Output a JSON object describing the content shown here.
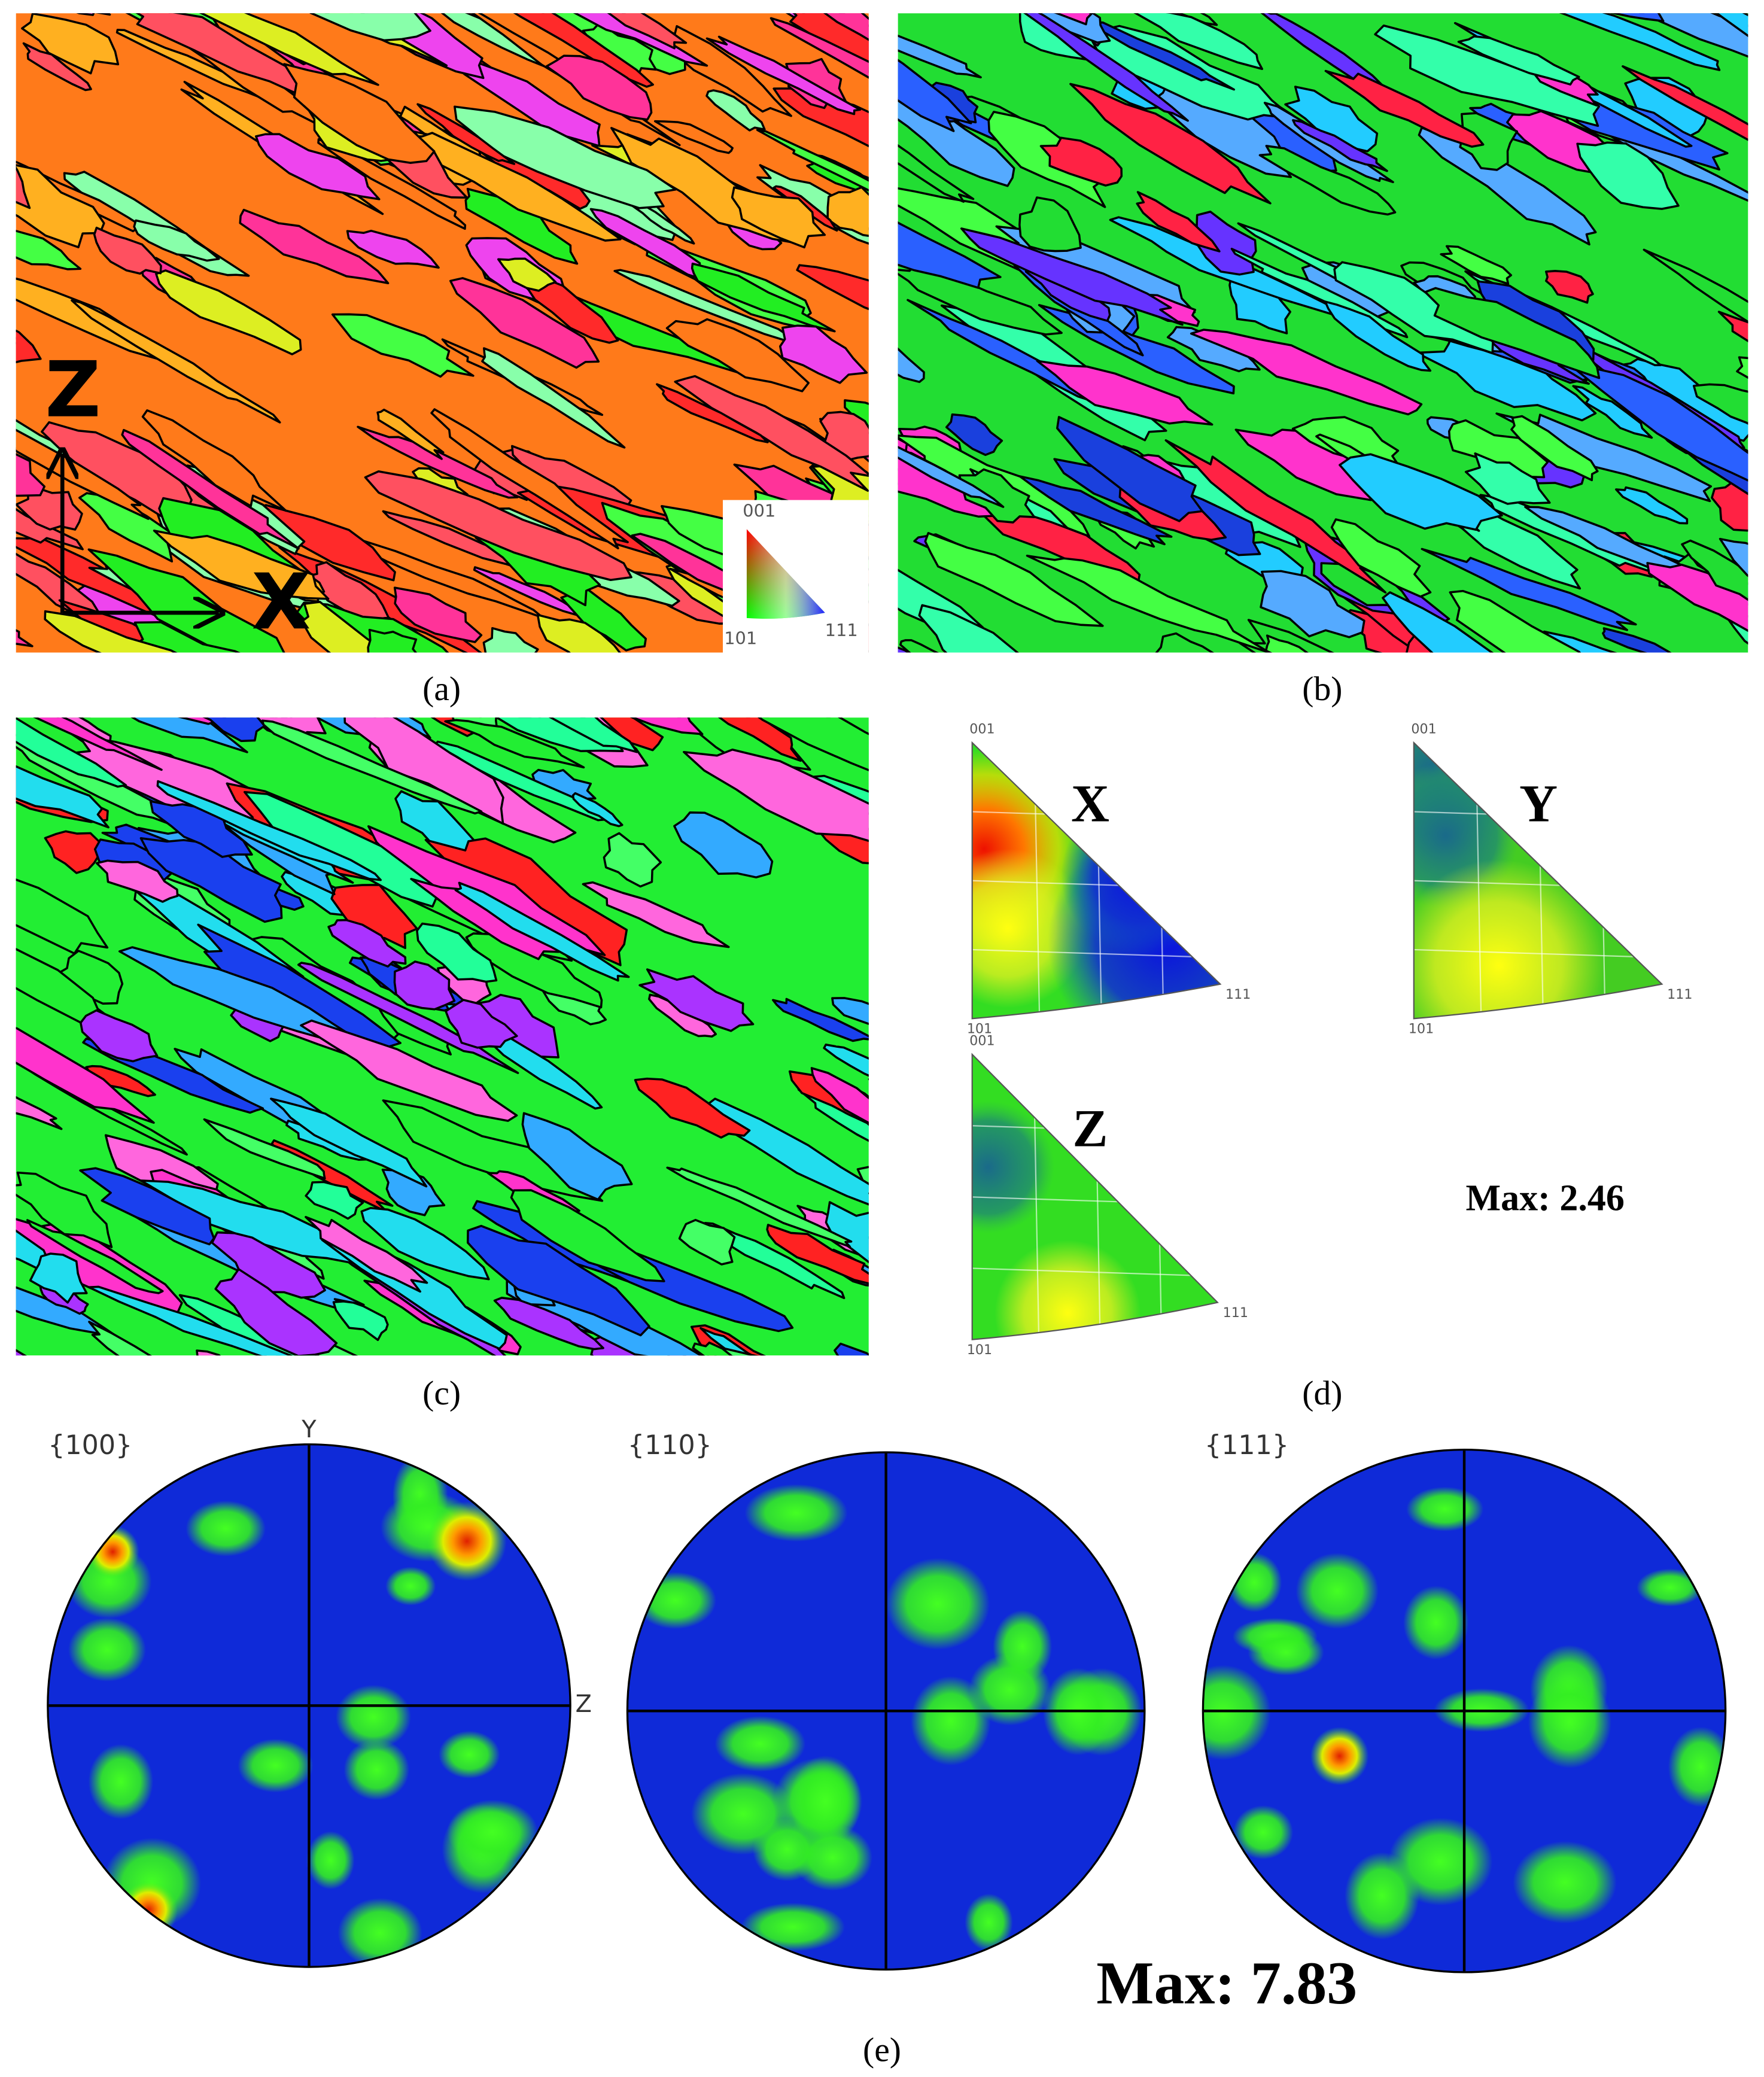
{
  "panels": {
    "a": {
      "label": "(a)",
      "legend": {
        "top": "001",
        "left": "101",
        "right": "111"
      },
      "axes": {
        "vertical": "Z",
        "horizontal": "X"
      }
    },
    "b": {
      "label": "(b)"
    },
    "c": {
      "label": "(c)"
    },
    "d": {
      "label": "(d)",
      "triangles": [
        {
          "direction": "X",
          "corners": {
            "top": "001",
            "left": "101",
            "right": "111"
          }
        },
        {
          "direction": "Y",
          "corners": {
            "top": "001",
            "left": "101",
            "right": "111"
          }
        },
        {
          "direction": "Z",
          "corners": {
            "top": "001",
            "left": "101",
            "right": "111"
          }
        }
      ],
      "max": "Max: 2.46"
    },
    "e": {
      "label": "(e)",
      "pole_figures": [
        {
          "plane": "{100}",
          "axis_top": "Y",
          "axis_right": "Z"
        },
        {
          "plane": "{110}"
        },
        {
          "plane": "{111}"
        }
      ],
      "max": "Max: 7.83"
    }
  }
}
